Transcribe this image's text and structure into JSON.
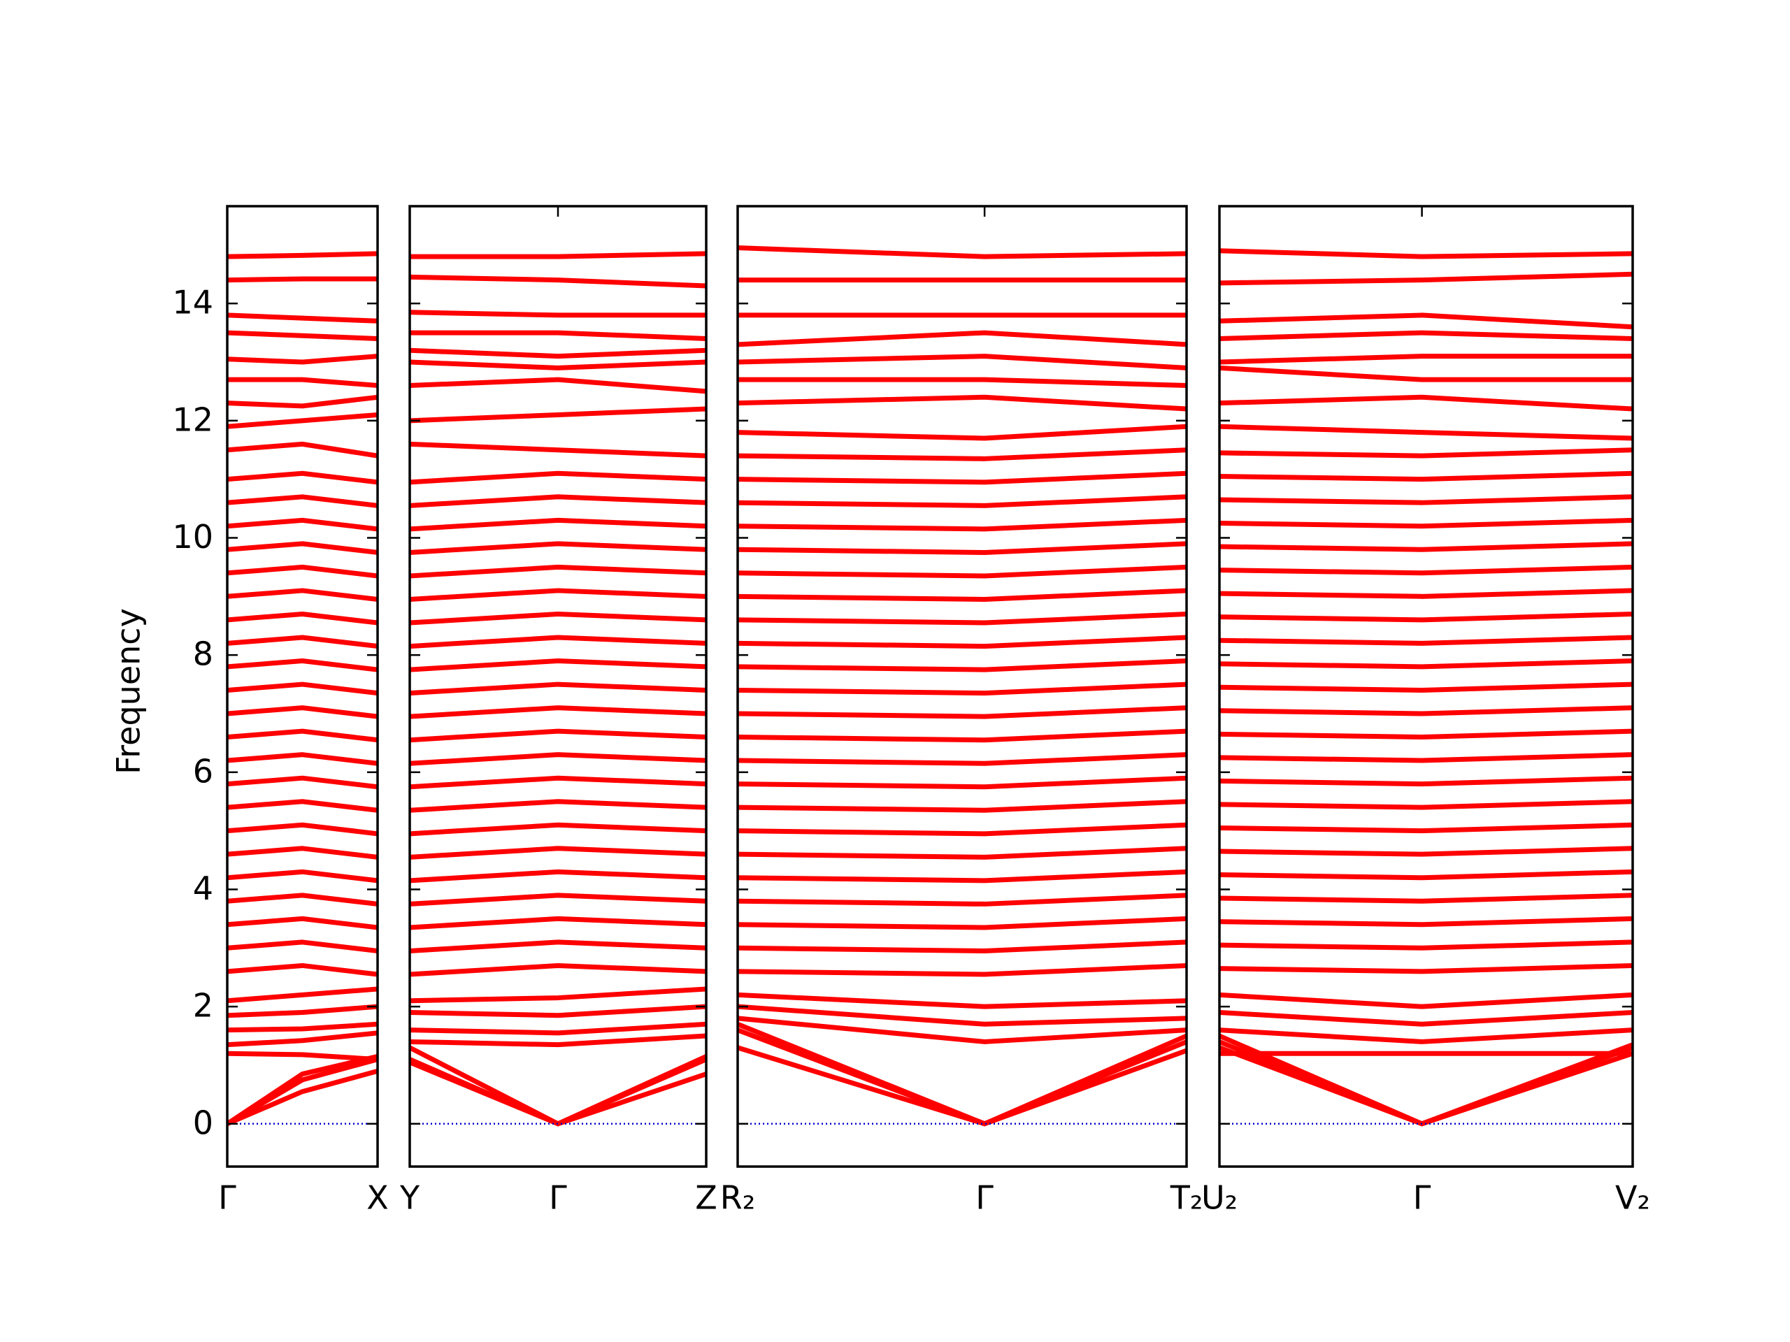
{
  "chart_data": [
    {
      "type": "line",
      "ylabel": "Frequency",
      "color": "#ff0000",
      "hline": {
        "value": 0,
        "color": "#0000cc"
      },
      "x": [
        0,
        0.5,
        1
      ],
      "xlim": [
        0,
        1
      ],
      "xticks": [
        {
          "value": 0,
          "label": "Γ"
        },
        {
          "value": 1,
          "label": "X"
        }
      ],
      "ylim": [
        -0.73,
        15.66
      ],
      "yticks": [
        0,
        2,
        4,
        6,
        8,
        10,
        12,
        14
      ],
      "series": [
        {
          "values": [
            0,
            0.55,
            0.9
          ]
        },
        {
          "values": [
            0,
            0.75,
            1.1
          ]
        },
        {
          "values": [
            0,
            0.85,
            1.15
          ]
        },
        {
          "values": [
            1.2,
            1.18,
            1.1
          ]
        },
        {
          "values": [
            1.35,
            1.42,
            1.55
          ]
        },
        {
          "values": [
            1.6,
            1.62,
            1.7
          ]
        },
        {
          "values": [
            1.85,
            1.9,
            2.0
          ]
        },
        {
          "values": [
            2.1,
            2.2,
            2.3
          ]
        },
        {
          "values": [
            2.6,
            2.7,
            2.55
          ]
        },
        {
          "values": [
            3.0,
            3.1,
            2.95
          ]
        },
        {
          "values": [
            3.4,
            3.5,
            3.35
          ]
        },
        {
          "values": [
            3.8,
            3.9,
            3.75
          ]
        },
        {
          "values": [
            4.2,
            4.3,
            4.15
          ]
        },
        {
          "values": [
            4.6,
            4.7,
            4.55
          ]
        },
        {
          "values": [
            5.0,
            5.1,
            4.95
          ]
        },
        {
          "values": [
            5.4,
            5.5,
            5.35
          ]
        },
        {
          "values": [
            5.8,
            5.9,
            5.75
          ]
        },
        {
          "values": [
            6.2,
            6.3,
            6.15
          ]
        },
        {
          "values": [
            6.6,
            6.7,
            6.55
          ]
        },
        {
          "values": [
            7.0,
            7.1,
            6.95
          ]
        },
        {
          "values": [
            7.4,
            7.5,
            7.35
          ]
        },
        {
          "values": [
            7.8,
            7.9,
            7.75
          ]
        },
        {
          "values": [
            8.2,
            8.3,
            8.15
          ]
        },
        {
          "values": [
            8.6,
            8.7,
            8.55
          ]
        },
        {
          "values": [
            9.0,
            9.1,
            8.95
          ]
        },
        {
          "values": [
            9.4,
            9.5,
            9.35
          ]
        },
        {
          "values": [
            9.8,
            9.9,
            9.75
          ]
        },
        {
          "values": [
            10.2,
            10.3,
            10.15
          ]
        },
        {
          "values": [
            10.6,
            10.7,
            10.55
          ]
        },
        {
          "values": [
            11.0,
            11.1,
            10.95
          ]
        },
        {
          "values": [
            11.5,
            11.6,
            11.4
          ]
        },
        {
          "values": [
            11.9,
            12.0,
            12.1
          ]
        },
        {
          "values": [
            12.3,
            12.25,
            12.4
          ]
        },
        {
          "values": [
            12.7,
            12.7,
            12.6
          ]
        },
        {
          "values": [
            13.05,
            13.0,
            13.1
          ]
        },
        {
          "values": [
            13.5,
            13.45,
            13.4
          ]
        },
        {
          "values": [
            13.8,
            13.75,
            13.7
          ]
        },
        {
          "values": [
            14.4,
            14.42,
            14.42
          ]
        },
        {
          "values": [
            14.8,
            14.82,
            14.85
          ]
        }
      ]
    },
    {
      "type": "line",
      "color": "#ff0000",
      "hline": {
        "value": 0,
        "color": "#0000cc"
      },
      "x": [
        0,
        0.5,
        1
      ],
      "xlim": [
        0,
        1
      ],
      "xticks": [
        {
          "value": 0,
          "label": "Y"
        },
        {
          "value": 0.5,
          "label": "Γ"
        },
        {
          "value": 1,
          "label": "Z"
        }
      ],
      "ylim": [
        -0.73,
        15.66
      ],
      "yticks": [
        0,
        2,
        4,
        6,
        8,
        10,
        12,
        14
      ],
      "series": [
        {
          "values": [
            1.1,
            0,
            0.85
          ]
        },
        {
          "values": [
            1.05,
            0,
            1.1
          ]
        },
        {
          "values": [
            1.3,
            0,
            1.15
          ]
        },
        {
          "values": [
            1.4,
            1.35,
            1.5
          ]
        },
        {
          "values": [
            1.6,
            1.55,
            1.7
          ]
        },
        {
          "values": [
            1.9,
            1.85,
            2.0
          ]
        },
        {
          "values": [
            2.1,
            2.15,
            2.3
          ]
        },
        {
          "values": [
            2.55,
            2.7,
            2.6
          ]
        },
        {
          "values": [
            2.95,
            3.1,
            3.0
          ]
        },
        {
          "values": [
            3.35,
            3.5,
            3.4
          ]
        },
        {
          "values": [
            3.75,
            3.9,
            3.8
          ]
        },
        {
          "values": [
            4.15,
            4.3,
            4.2
          ]
        },
        {
          "values": [
            4.55,
            4.7,
            4.6
          ]
        },
        {
          "values": [
            4.95,
            5.1,
            5.0
          ]
        },
        {
          "values": [
            5.35,
            5.5,
            5.4
          ]
        },
        {
          "values": [
            5.75,
            5.9,
            5.8
          ]
        },
        {
          "values": [
            6.15,
            6.3,
            6.2
          ]
        },
        {
          "values": [
            6.55,
            6.7,
            6.6
          ]
        },
        {
          "values": [
            6.95,
            7.1,
            7.0
          ]
        },
        {
          "values": [
            7.35,
            7.5,
            7.4
          ]
        },
        {
          "values": [
            7.75,
            7.9,
            7.8
          ]
        },
        {
          "values": [
            8.15,
            8.3,
            8.2
          ]
        },
        {
          "values": [
            8.55,
            8.7,
            8.6
          ]
        },
        {
          "values": [
            8.95,
            9.1,
            9.0
          ]
        },
        {
          "values": [
            9.35,
            9.5,
            9.4
          ]
        },
        {
          "values": [
            9.75,
            9.9,
            9.8
          ]
        },
        {
          "values": [
            10.15,
            10.3,
            10.2
          ]
        },
        {
          "values": [
            10.55,
            10.7,
            10.6
          ]
        },
        {
          "values": [
            10.95,
            11.1,
            11.0
          ]
        },
        {
          "values": [
            11.6,
            11.5,
            11.4
          ]
        },
        {
          "values": [
            12.0,
            12.1,
            12.2
          ]
        },
        {
          "values": [
            12.6,
            12.7,
            12.5
          ]
        },
        {
          "values": [
            13.0,
            12.9,
            13.0
          ]
        },
        {
          "values": [
            13.2,
            13.1,
            13.2
          ]
        },
        {
          "values": [
            13.5,
            13.5,
            13.4
          ]
        },
        {
          "values": [
            13.85,
            13.8,
            13.8
          ]
        },
        {
          "values": [
            14.45,
            14.4,
            14.3
          ]
        },
        {
          "values": [
            14.8,
            14.8,
            14.85
          ]
        }
      ]
    },
    {
      "type": "line",
      "color": "#ff0000",
      "hline": {
        "value": 0,
        "color": "#0000cc"
      },
      "x": [
        0,
        0.55,
        1
      ],
      "xlim": [
        0,
        1
      ],
      "xticks": [
        {
          "value": 0,
          "label": "R₂"
        },
        {
          "value": 0.55,
          "label": "Γ"
        },
        {
          "value": 1,
          "label": "T₂"
        }
      ],
      "ylim": [
        -0.73,
        15.66
      ],
      "yticks": [
        0,
        2,
        4,
        6,
        8,
        10,
        12,
        14
      ],
      "series": [
        {
          "values": [
            1.3,
            0,
            1.25
          ]
        },
        {
          "values": [
            1.6,
            0,
            1.4
          ]
        },
        {
          "values": [
            1.7,
            0,
            1.5
          ]
        },
        {
          "values": [
            1.8,
            1.4,
            1.6
          ]
        },
        {
          "values": [
            2.0,
            1.7,
            1.8
          ]
        },
        {
          "values": [
            2.2,
            2.0,
            2.1
          ]
        },
        {
          "values": [
            2.6,
            2.55,
            2.7
          ]
        },
        {
          "values": [
            3.0,
            2.95,
            3.1
          ]
        },
        {
          "values": [
            3.4,
            3.35,
            3.5
          ]
        },
        {
          "values": [
            3.8,
            3.75,
            3.9
          ]
        },
        {
          "values": [
            4.2,
            4.15,
            4.3
          ]
        },
        {
          "values": [
            4.6,
            4.55,
            4.7
          ]
        },
        {
          "values": [
            5.0,
            4.95,
            5.1
          ]
        },
        {
          "values": [
            5.4,
            5.35,
            5.5
          ]
        },
        {
          "values": [
            5.8,
            5.75,
            5.9
          ]
        },
        {
          "values": [
            6.2,
            6.15,
            6.3
          ]
        },
        {
          "values": [
            6.6,
            6.55,
            6.7
          ]
        },
        {
          "values": [
            7.0,
            6.95,
            7.1
          ]
        },
        {
          "values": [
            7.4,
            7.35,
            7.5
          ]
        },
        {
          "values": [
            7.8,
            7.75,
            7.9
          ]
        },
        {
          "values": [
            8.2,
            8.15,
            8.3
          ]
        },
        {
          "values": [
            8.6,
            8.55,
            8.7
          ]
        },
        {
          "values": [
            9.0,
            8.95,
            9.1
          ]
        },
        {
          "values": [
            9.4,
            9.35,
            9.5
          ]
        },
        {
          "values": [
            9.8,
            9.75,
            9.9
          ]
        },
        {
          "values": [
            10.2,
            10.15,
            10.3
          ]
        },
        {
          "values": [
            10.6,
            10.55,
            10.7
          ]
        },
        {
          "values": [
            11.0,
            10.95,
            11.1
          ]
        },
        {
          "values": [
            11.4,
            11.35,
            11.5
          ]
        },
        {
          "values": [
            11.8,
            11.7,
            11.9
          ]
        },
        {
          "values": [
            12.3,
            12.4,
            12.2
          ]
        },
        {
          "values": [
            12.7,
            12.7,
            12.6
          ]
        },
        {
          "values": [
            13.0,
            13.1,
            12.9
          ]
        },
        {
          "values": [
            13.3,
            13.5,
            13.3
          ]
        },
        {
          "values": [
            13.8,
            13.8,
            13.8
          ]
        },
        {
          "values": [
            14.4,
            14.4,
            14.4
          ]
        },
        {
          "values": [
            14.95,
            14.8,
            14.85
          ]
        }
      ]
    },
    {
      "type": "line",
      "color": "#ff0000",
      "hline": {
        "value": 0,
        "color": "#0000cc"
      },
      "x": [
        0,
        0.49,
        1
      ],
      "xlim": [
        0,
        1
      ],
      "xticks": [
        {
          "value": 0,
          "label": "U₂"
        },
        {
          "value": 0.49,
          "label": "Γ"
        },
        {
          "value": 1,
          "label": "V₂"
        }
      ],
      "ylim": [
        -0.73,
        15.66
      ],
      "yticks": [
        0,
        2,
        4,
        6,
        8,
        10,
        12,
        14
      ],
      "series": [
        {
          "values": [
            1.5,
            0,
            1.2
          ]
        },
        {
          "values": [
            1.4,
            0,
            1.3
          ]
        },
        {
          "values": [
            1.3,
            0,
            1.35
          ]
        },
        {
          "values": [
            1.2,
            1.2,
            1.2
          ]
        },
        {
          "values": [
            1.6,
            1.4,
            1.6
          ]
        },
        {
          "values": [
            1.9,
            1.7,
            1.9
          ]
        },
        {
          "values": [
            2.2,
            2.0,
            2.2
          ]
        },
        {
          "values": [
            2.65,
            2.6,
            2.7
          ]
        },
        {
          "values": [
            3.05,
            3.0,
            3.1
          ]
        },
        {
          "values": [
            3.45,
            3.4,
            3.5
          ]
        },
        {
          "values": [
            3.85,
            3.8,
            3.9
          ]
        },
        {
          "values": [
            4.25,
            4.2,
            4.3
          ]
        },
        {
          "values": [
            4.65,
            4.6,
            4.7
          ]
        },
        {
          "values": [
            5.05,
            5.0,
            5.1
          ]
        },
        {
          "values": [
            5.45,
            5.4,
            5.5
          ]
        },
        {
          "values": [
            5.85,
            5.8,
            5.9
          ]
        },
        {
          "values": [
            6.25,
            6.2,
            6.3
          ]
        },
        {
          "values": [
            6.65,
            6.6,
            6.7
          ]
        },
        {
          "values": [
            7.05,
            7.0,
            7.1
          ]
        },
        {
          "values": [
            7.45,
            7.4,
            7.5
          ]
        },
        {
          "values": [
            7.85,
            7.8,
            7.9
          ]
        },
        {
          "values": [
            8.25,
            8.2,
            8.3
          ]
        },
        {
          "values": [
            8.65,
            8.6,
            8.7
          ]
        },
        {
          "values": [
            9.05,
            9.0,
            9.1
          ]
        },
        {
          "values": [
            9.45,
            9.4,
            9.5
          ]
        },
        {
          "values": [
            9.85,
            9.8,
            9.9
          ]
        },
        {
          "values": [
            10.25,
            10.2,
            10.3
          ]
        },
        {
          "values": [
            10.65,
            10.6,
            10.7
          ]
        },
        {
          "values": [
            11.05,
            11.0,
            11.1
          ]
        },
        {
          "values": [
            11.45,
            11.4,
            11.5
          ]
        },
        {
          "values": [
            11.9,
            11.8,
            11.7
          ]
        },
        {
          "values": [
            12.3,
            12.4,
            12.2
          ]
        },
        {
          "values": [
            12.9,
            12.7,
            12.7
          ]
        },
        {
          "values": [
            13.0,
            13.1,
            13.1
          ]
        },
        {
          "values": [
            13.4,
            13.5,
            13.4
          ]
        },
        {
          "values": [
            13.7,
            13.8,
            13.6
          ]
        },
        {
          "values": [
            14.35,
            14.4,
            14.5
          ]
        },
        {
          "values": [
            14.9,
            14.8,
            14.85
          ]
        }
      ]
    }
  ]
}
